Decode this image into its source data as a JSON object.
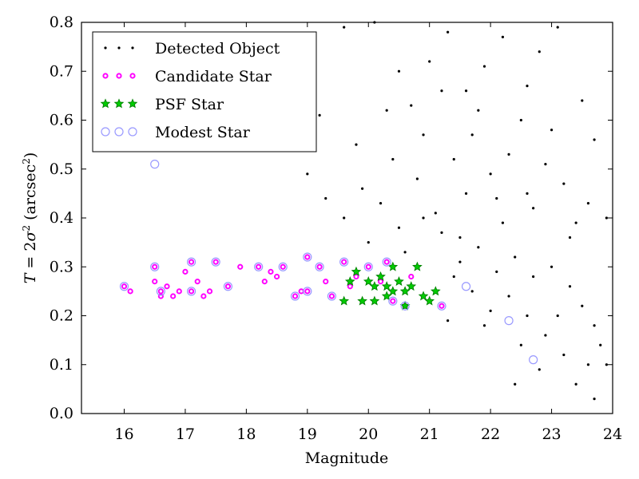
{
  "chart_data": {
    "type": "scatter",
    "title": "",
    "xlabel": "Magnitude",
    "ylabel_parts": {
      "lhs": "T",
      "eq": " = 2",
      "sigma": "σ",
      "sq": "2",
      "unit_open": " (arcsec",
      "unit_sq": "2",
      "unit_close": ")"
    },
    "xlim": [
      15.3,
      24.0
    ],
    "ylim": [
      0.0,
      0.8
    ],
    "xticks": [
      "16",
      "17",
      "18",
      "19",
      "20",
      "21",
      "22",
      "23",
      "24"
    ],
    "yticks": [
      "0.0",
      "0.1",
      "0.2",
      "0.3",
      "0.4",
      "0.5",
      "0.6",
      "0.7",
      "0.8"
    ],
    "grid": false,
    "legend_position": "upper-left",
    "colors": {
      "detected": "#000000",
      "candidate": "#ff00ff",
      "psf": "#008000",
      "modest": "#9999ff"
    },
    "series": [
      {
        "name": "Detected Object",
        "marker": "dot",
        "points": [
          [
            18.6,
            0.75
          ],
          [
            18.9,
            0.68
          ],
          [
            19.2,
            0.61
          ],
          [
            19.6,
            0.79
          ],
          [
            20.1,
            0.8
          ],
          [
            19.8,
            0.55
          ],
          [
            20.4,
            0.52
          ],
          [
            20.7,
            0.63
          ],
          [
            21.0,
            0.72
          ],
          [
            21.3,
            0.78
          ],
          [
            21.6,
            0.66
          ],
          [
            21.9,
            0.71
          ],
          [
            22.2,
            0.77
          ],
          [
            22.5,
            0.6
          ],
          [
            22.8,
            0.74
          ],
          [
            23.1,
            0.79
          ],
          [
            23.5,
            0.64
          ],
          [
            23.7,
            0.56
          ],
          [
            19.0,
            0.49
          ],
          [
            19.3,
            0.44
          ],
          [
            19.6,
            0.4
          ],
          [
            19.9,
            0.46
          ],
          [
            20.2,
            0.43
          ],
          [
            20.5,
            0.38
          ],
          [
            20.8,
            0.48
          ],
          [
            21.1,
            0.41
          ],
          [
            21.4,
            0.52
          ],
          [
            21.7,
            0.57
          ],
          [
            22.0,
            0.49
          ],
          [
            22.3,
            0.53
          ],
          [
            22.6,
            0.45
          ],
          [
            22.9,
            0.51
          ],
          [
            23.2,
            0.47
          ],
          [
            23.4,
            0.39
          ],
          [
            23.6,
            0.43
          ],
          [
            23.9,
            0.4
          ],
          [
            20.0,
            0.35
          ],
          [
            20.6,
            0.33
          ],
          [
            21.2,
            0.37
          ],
          [
            21.5,
            0.31
          ],
          [
            21.8,
            0.34
          ],
          [
            22.1,
            0.29
          ],
          [
            22.4,
            0.32
          ],
          [
            22.7,
            0.28
          ],
          [
            23.0,
            0.3
          ],
          [
            23.3,
            0.26
          ],
          [
            23.5,
            0.22
          ],
          [
            23.7,
            0.18
          ],
          [
            23.8,
            0.14
          ],
          [
            23.6,
            0.1
          ],
          [
            23.4,
            0.06
          ],
          [
            23.7,
            0.03
          ],
          [
            23.2,
            0.12
          ],
          [
            22.9,
            0.16
          ],
          [
            22.6,
            0.2
          ],
          [
            22.3,
            0.24
          ],
          [
            22.0,
            0.21
          ],
          [
            21.7,
            0.25
          ],
          [
            21.4,
            0.28
          ],
          [
            21.9,
            0.18
          ],
          [
            22.8,
            0.09
          ],
          [
            22.4,
            0.06
          ],
          [
            23.9,
            0.1
          ],
          [
            21.3,
            0.19
          ],
          [
            22.5,
            0.14
          ],
          [
            23.1,
            0.2
          ],
          [
            20.3,
            0.62
          ],
          [
            20.9,
            0.57
          ],
          [
            21.6,
            0.45
          ],
          [
            22.2,
            0.39
          ],
          [
            22.7,
            0.42
          ],
          [
            23.3,
            0.36
          ],
          [
            20.5,
            0.7
          ],
          [
            21.8,
            0.62
          ],
          [
            22.6,
            0.67
          ],
          [
            23.0,
            0.58
          ],
          [
            21.2,
            0.66
          ],
          [
            20.9,
            0.4
          ],
          [
            21.5,
            0.36
          ],
          [
            22.1,
            0.44
          ]
        ]
      },
      {
        "name": "Candidate Star",
        "marker": "circle",
        "points": [
          [
            16.0,
            0.26
          ],
          [
            16.1,
            0.25
          ],
          [
            16.5,
            0.3
          ],
          [
            16.5,
            0.27
          ],
          [
            16.6,
            0.25
          ],
          [
            16.6,
            0.24
          ],
          [
            16.7,
            0.26
          ],
          [
            16.8,
            0.24
          ],
          [
            16.9,
            0.25
          ],
          [
            17.0,
            0.29
          ],
          [
            17.1,
            0.31
          ],
          [
            17.1,
            0.25
          ],
          [
            17.2,
            0.27
          ],
          [
            17.3,
            0.24
          ],
          [
            17.4,
            0.25
          ],
          [
            17.5,
            0.31
          ],
          [
            17.7,
            0.26
          ],
          [
            17.9,
            0.3
          ],
          [
            18.2,
            0.3
          ],
          [
            18.3,
            0.27
          ],
          [
            18.4,
            0.29
          ],
          [
            18.5,
            0.28
          ],
          [
            18.6,
            0.3
          ],
          [
            18.8,
            0.24
          ],
          [
            18.9,
            0.25
          ],
          [
            19.0,
            0.25
          ],
          [
            19.0,
            0.32
          ],
          [
            19.2,
            0.3
          ],
          [
            19.3,
            0.27
          ],
          [
            19.4,
            0.24
          ],
          [
            19.6,
            0.31
          ],
          [
            19.7,
            0.26
          ],
          [
            19.8,
            0.28
          ],
          [
            20.0,
            0.3
          ],
          [
            20.2,
            0.27
          ],
          [
            20.3,
            0.31
          ],
          [
            20.4,
            0.23
          ],
          [
            20.6,
            0.22
          ],
          [
            20.7,
            0.28
          ],
          [
            21.2,
            0.22
          ]
        ]
      },
      {
        "name": "PSF Star",
        "marker": "star",
        "points": [
          [
            19.6,
            0.23
          ],
          [
            19.7,
            0.27
          ],
          [
            19.8,
            0.29
          ],
          [
            19.9,
            0.23
          ],
          [
            20.0,
            0.27
          ],
          [
            20.1,
            0.26
          ],
          [
            20.1,
            0.23
          ],
          [
            20.2,
            0.28
          ],
          [
            20.3,
            0.26
          ],
          [
            20.4,
            0.3
          ],
          [
            20.4,
            0.25
          ],
          [
            20.5,
            0.27
          ],
          [
            20.6,
            0.25
          ],
          [
            20.6,
            0.22
          ],
          [
            20.7,
            0.26
          ],
          [
            20.8,
            0.3
          ],
          [
            20.9,
            0.24
          ],
          [
            21.0,
            0.23
          ],
          [
            21.1,
            0.25
          ],
          [
            20.3,
            0.24
          ]
        ]
      },
      {
        "name": "Modest Star",
        "marker": "open-circle",
        "points": [
          [
            16.5,
            0.51
          ],
          [
            16.0,
            0.26
          ],
          [
            16.5,
            0.3
          ],
          [
            16.6,
            0.25
          ],
          [
            17.1,
            0.31
          ],
          [
            17.1,
            0.25
          ],
          [
            17.5,
            0.31
          ],
          [
            17.7,
            0.26
          ],
          [
            18.2,
            0.3
          ],
          [
            18.6,
            0.3
          ],
          [
            18.8,
            0.24
          ],
          [
            19.0,
            0.25
          ],
          [
            19.0,
            0.32
          ],
          [
            19.6,
            0.31
          ],
          [
            20.0,
            0.3
          ],
          [
            20.3,
            0.31
          ],
          [
            20.6,
            0.22
          ],
          [
            21.2,
            0.22
          ],
          [
            21.6,
            0.26
          ],
          [
            22.3,
            0.19
          ],
          [
            22.7,
            0.11
          ],
          [
            19.2,
            0.3
          ],
          [
            19.4,
            0.24
          ],
          [
            20.4,
            0.23
          ]
        ]
      }
    ]
  }
}
